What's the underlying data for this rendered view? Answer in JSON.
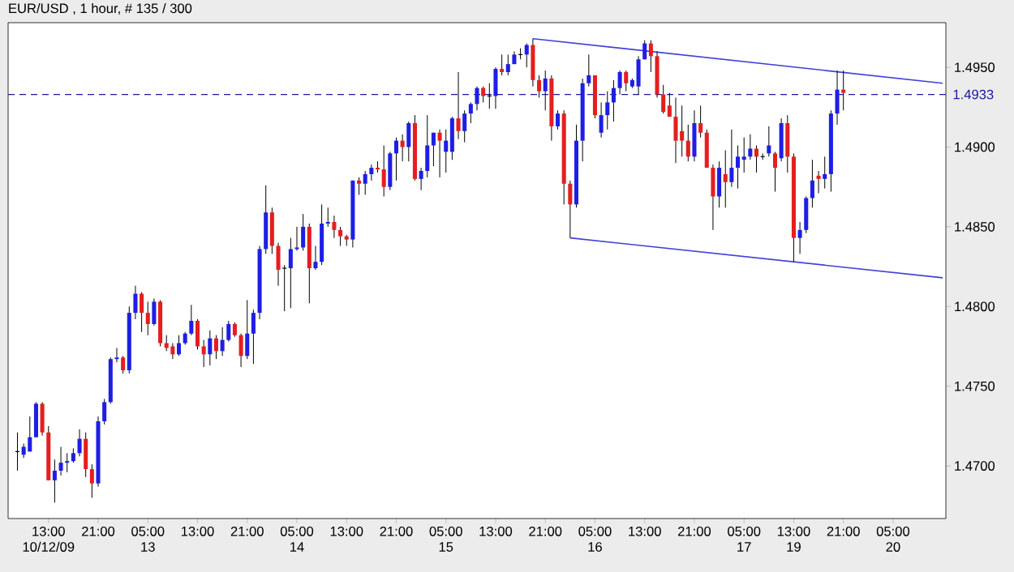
{
  "chart_data": {
    "type": "candlestick",
    "title": "EUR/USD , 1 hour, # 135 / 300",
    "categories": [
      null,
      null,
      null,
      null,
      null,
      "13:00 10/12/09",
      null,
      null,
      null,
      null,
      null,
      null,
      null,
      "21:00",
      null,
      null,
      null,
      null,
      null,
      null,
      null,
      "05:00 13",
      null,
      null,
      null,
      null,
      null,
      null,
      null,
      "13:00",
      null,
      null,
      null,
      null,
      null,
      null,
      null,
      "21:00",
      null,
      null,
      null,
      null,
      null,
      null,
      null,
      "05:00 14",
      null,
      null,
      null,
      null,
      null,
      null,
      null,
      "13:00",
      null,
      null,
      null,
      null,
      null,
      null,
      null,
      "21:00",
      null,
      null,
      null,
      null,
      null,
      null,
      null,
      "05:00 15",
      null,
      null,
      null,
      null,
      null,
      null,
      null,
      "13:00",
      null,
      null,
      null,
      null,
      null,
      null,
      null,
      "21:00",
      null,
      null,
      null,
      null,
      null,
      null,
      null,
      "05:00 16",
      null,
      null,
      null,
      null,
      null,
      null,
      null,
      "13:00",
      null,
      null,
      null,
      null,
      null,
      null,
      null,
      "21:00",
      null,
      null,
      null,
      null,
      null,
      null,
      null,
      "05:00 17",
      null,
      null,
      null,
      null,
      null,
      null,
      null,
      "13:00 19",
      null,
      null,
      null,
      null,
      null,
      null,
      null,
      "21:00",
      null,
      null,
      null,
      null,
      null,
      null,
      null,
      "05:00 20",
      null,
      null,
      null,
      null,
      null,
      null,
      null,
      null
    ],
    "ohlc": [
      [
        1.4709,
        1.4721,
        1.4697,
        1.4709
      ],
      [
        1.4707,
        1.4714,
        1.4705,
        1.4712
      ],
      [
        1.4709,
        1.4731,
        1.4709,
        1.4718
      ],
      [
        1.4718,
        1.474,
        1.4718,
        1.4739
      ],
      [
        1.4739,
        1.474,
        1.4719,
        1.4721
      ],
      [
        1.4721,
        1.4725,
        1.4691,
        1.4691
      ],
      [
        1.4691,
        1.4704,
        1.4677,
        1.4697
      ],
      [
        1.4697,
        1.4712,
        1.4694,
        1.4702
      ],
      [
        1.4702,
        1.4708,
        1.4696,
        1.4703
      ],
      [
        1.4703,
        1.4711,
        1.4702,
        1.4708
      ],
      [
        1.4708,
        1.4723,
        1.4706,
        1.4717
      ],
      [
        1.4717,
        1.4721,
        1.4693,
        1.4698
      ],
      [
        1.4698,
        1.4701,
        1.468,
        1.4689
      ],
      [
        1.4689,
        1.4731,
        1.4687,
        1.4728
      ],
      [
        1.4728,
        1.4742,
        1.4726,
        1.474
      ],
      [
        1.474,
        1.4768,
        1.4739,
        1.4767
      ],
      [
        1.4767,
        1.4774,
        1.4765,
        1.4768
      ],
      [
        1.4768,
        1.4769,
        1.4758,
        1.476
      ],
      [
        1.476,
        1.48,
        1.4758,
        1.4796
      ],
      [
        1.4796,
        1.4813,
        1.4792,
        1.4808
      ],
      [
        1.4808,
        1.4809,
        1.4784,
        1.4796
      ],
      [
        1.4796,
        1.4803,
        1.4782,
        1.4789
      ],
      [
        1.4789,
        1.4805,
        1.4788,
        1.4803
      ],
      [
        1.4803,
        1.4804,
        1.4775,
        1.4777
      ],
      [
        1.4777,
        1.4782,
        1.4772,
        1.4774
      ],
      [
        1.4775,
        1.4777,
        1.4767,
        1.477
      ],
      [
        1.477,
        1.4782,
        1.4769,
        1.4777
      ],
      [
        1.4777,
        1.4784,
        1.4776,
        1.4783
      ],
      [
        1.4783,
        1.4801,
        1.4782,
        1.4791
      ],
      [
        1.4791,
        1.4792,
        1.4773,
        1.4775
      ],
      [
        1.4775,
        1.4779,
        1.4762,
        1.477
      ],
      [
        1.477,
        1.4785,
        1.4763,
        1.478
      ],
      [
        1.478,
        1.4782,
        1.4767,
        1.4772
      ],
      [
        1.4772,
        1.4787,
        1.4769,
        1.4779
      ],
      [
        1.4779,
        1.4791,
        1.4778,
        1.4789
      ],
      [
        1.4789,
        1.479,
        1.4781,
        1.4782
      ],
      [
        1.4782,
        1.4783,
        1.4762,
        1.4769
      ],
      [
        1.4769,
        1.4804,
        1.4767,
        1.4783
      ],
      [
        1.4783,
        1.4798,
        1.4764,
        1.4796
      ],
      [
        1.4796,
        1.4838,
        1.4792,
        1.4836
      ],
      [
        1.4836,
        1.4876,
        1.4833,
        1.4859
      ],
      [
        1.4859,
        1.4862,
        1.4833,
        1.4838
      ],
      [
        1.4838,
        1.484,
        1.4813,
        1.4823
      ],
      [
        1.4824,
        1.4826,
        1.4797,
        1.4824
      ],
      [
        1.4824,
        1.4843,
        1.4799,
        1.4836
      ],
      [
        1.4836,
        1.485,
        1.4835,
        1.4837
      ],
      [
        1.4837,
        1.4858,
        1.4835,
        1.485
      ],
      [
        1.485,
        1.4852,
        1.4802,
        1.4824
      ],
      [
        1.4824,
        1.4838,
        1.4823,
        1.4828
      ],
      [
        1.4828,
        1.4864,
        1.4826,
        1.4852
      ],
      [
        1.4852,
        1.4862,
        1.485,
        1.4853
      ],
      [
        1.4853,
        1.4857,
        1.4843,
        1.4848
      ],
      [
        1.4848,
        1.485,
        1.4838,
        1.4844
      ],
      [
        1.4844,
        1.4845,
        1.4838,
        1.4842
      ],
      [
        1.4842,
        1.4879,
        1.4837,
        1.4879
      ],
      [
        1.4879,
        1.4881,
        1.487,
        1.4877
      ],
      [
        1.4877,
        1.4885,
        1.487,
        1.4883
      ],
      [
        1.4883,
        1.4889,
        1.4879,
        1.4887
      ],
      [
        1.4887,
        1.4891,
        1.4884,
        1.4886
      ],
      [
        1.4886,
        1.4901,
        1.4869,
        1.4875
      ],
      [
        1.4875,
        1.4897,
        1.4873,
        1.4896
      ],
      [
        1.4896,
        1.4906,
        1.4879,
        1.4904
      ],
      [
        1.4904,
        1.4908,
        1.4891,
        1.49
      ],
      [
        1.49,
        1.4916,
        1.4891,
        1.4915
      ],
      [
        1.4915,
        1.492,
        1.4879,
        1.488
      ],
      [
        1.488,
        1.4887,
        1.4873,
        1.4885
      ],
      [
        1.4885,
        1.492,
        1.4881,
        1.4901
      ],
      [
        1.4901,
        1.4909,
        1.4888,
        1.4909
      ],
      [
        1.4909,
        1.4911,
        1.4881,
        1.4904
      ],
      [
        1.4897,
        1.4911,
        1.4884,
        1.4904
      ],
      [
        1.4897,
        1.4919,
        1.4892,
        1.4918
      ],
      [
        1.4918,
        1.4947,
        1.4905,
        1.491
      ],
      [
        1.491,
        1.4923,
        1.4903,
        1.4921
      ],
      [
        1.4921,
        1.4928,
        1.4915,
        1.4927
      ],
      [
        1.4927,
        1.4938,
        1.4923,
        1.4937
      ],
      [
        1.4937,
        1.4938,
        1.4928,
        1.4932
      ],
      [
        1.4932,
        1.494,
        1.4924,
        1.4932
      ],
      [
        1.4932,
        1.495,
        1.4924,
        1.4949
      ],
      [
        1.4949,
        1.4958,
        1.4945,
        1.4947
      ],
      [
        1.4947,
        1.4958,
        1.4945,
        1.4952
      ],
      [
        1.4952,
        1.496,
        1.4952,
        1.4958
      ],
      [
        1.4958,
        1.4962,
        1.4955,
        1.4958
      ],
      [
        1.4958,
        1.4965,
        1.495,
        1.4964
      ],
      [
        1.4964,
        1.4968,
        1.4938,
        1.4942
      ],
      [
        1.4942,
        1.4945,
        1.4931,
        1.4935
      ],
      [
        1.4935,
        1.4948,
        1.4923,
        1.4943
      ],
      [
        1.4943,
        1.4945,
        1.4904,
        1.4913
      ],
      [
        1.4913,
        1.4923,
        1.4911,
        1.4921
      ],
      [
        1.4921,
        1.4923,
        1.4864,
        1.4877
      ],
      [
        1.4877,
        1.4879,
        1.4843,
        1.4864
      ],
      [
        1.4864,
        1.4914,
        1.4862,
        1.4904
      ],
      [
        1.4904,
        1.4943,
        1.4891,
        1.494
      ],
      [
        1.494,
        1.4958,
        1.4938,
        1.4945
      ],
      [
        1.4945,
        1.4945,
        1.4918,
        1.492
      ],
      [
        1.4909,
        1.4928,
        1.4906,
        1.492
      ],
      [
        1.492,
        1.4935,
        1.4911,
        1.4928
      ],
      [
        1.4928,
        1.4942,
        1.4916,
        1.4937
      ],
      [
        1.4937,
        1.4948,
        1.4933,
        1.4947
      ],
      [
        1.4947,
        1.4948,
        1.4935,
        1.494
      ],
      [
        1.4938,
        1.4943,
        1.4937,
        1.4942
      ],
      [
        1.4938,
        1.4957,
        1.4933,
        1.4955
      ],
      [
        1.4955,
        1.4967,
        1.4955,
        1.4965
      ],
      [
        1.4965,
        1.4967,
        1.4947,
        1.4957
      ],
      [
        1.4957,
        1.496,
        1.4931,
        1.4933
      ],
      [
        1.4933,
        1.4939,
        1.4921,
        1.4922
      ],
      [
        1.4926,
        1.4934,
        1.4919,
        1.4919
      ],
      [
        1.4919,
        1.4931,
        1.489,
        1.4904
      ],
      [
        1.491,
        1.4926,
        1.4894,
        1.4904
      ],
      [
        1.4904,
        1.4914,
        1.4891,
        1.4894
      ],
      [
        1.4894,
        1.4923,
        1.4891,
        1.4915
      ],
      [
        1.4915,
        1.4926,
        1.4906,
        1.4909
      ],
      [
        1.4909,
        1.4911,
        1.4887,
        1.4887
      ],
      [
        1.4887,
        1.4889,
        1.4848,
        1.4869
      ],
      [
        1.4869,
        1.4891,
        1.4862,
        1.4887
      ],
      [
        1.4883,
        1.4898,
        1.4862,
        1.4878
      ],
      [
        1.4878,
        1.4911,
        1.4875,
        1.4887
      ],
      [
        1.4887,
        1.4901,
        1.4874,
        1.4894
      ],
      [
        1.4892,
        1.4906,
        1.4884,
        1.4894
      ],
      [
        1.4894,
        1.4908,
        1.4892,
        1.4899
      ],
      [
        1.4899,
        1.4901,
        1.4884,
        1.4894
      ],
      [
        1.4894,
        1.4896,
        1.4892,
        1.4894
      ],
      [
        1.4896,
        1.4913,
        1.4894,
        1.4901
      ],
      [
        1.4896,
        1.4897,
        1.4872,
        1.4887
      ],
      [
        1.4893,
        1.4918,
        1.4891,
        1.4915
      ],
      [
        1.4915,
        1.492,
        1.4884,
        1.4894
      ],
      [
        1.4894,
        1.4896,
        1.4828,
        1.4843
      ],
      [
        1.4843,
        1.4853,
        1.4833,
        1.4848
      ],
      [
        1.4848,
        1.4869,
        1.4846,
        1.4868
      ],
      [
        1.4868,
        1.4892,
        1.4862,
        1.4879
      ],
      [
        1.4882,
        1.4885,
        1.4871,
        1.488
      ],
      [
        1.488,
        1.4894,
        1.4874,
        1.4883
      ],
      [
        1.4883,
        1.4923,
        1.4872,
        1.4921
      ],
      [
        1.4921,
        1.4948,
        1.4914,
        1.4936
      ],
      [
        1.4936,
        1.4948,
        1.4923,
        1.4934
      ],
      null,
      null,
      null,
      null,
      null,
      null,
      null,
      null,
      null,
      null,
      null,
      null,
      null,
      null,
      null,
      null
    ],
    "colors": [
      "#000000",
      "#1e1ee6",
      "#1e1ee6",
      "#1e1ee6",
      "#e61e1e",
      "#e61e1e",
      "#1e1ee6",
      "#1e1ee6",
      "#1e1ee6",
      "#1e1ee6",
      "#1e1ee6",
      "#e61e1e",
      "#e61e1e",
      "#1e1ee6",
      "#1e1ee6",
      "#1e1ee6",
      "#1e1ee6",
      "#e61e1e",
      "#1e1ee6",
      "#1e1ee6",
      "#e61e1e",
      "#e61e1e",
      "#1e1ee6",
      "#e61e1e",
      "#e61e1e",
      "#e61e1e",
      "#1e1ee6",
      "#1e1ee6",
      "#1e1ee6",
      "#e61e1e",
      "#e61e1e",
      "#1e1ee6",
      "#e61e1e",
      "#1e1ee6",
      "#1e1ee6",
      "#e61e1e",
      "#e61e1e",
      "#1e1ee6",
      "#1e1ee6",
      "#1e1ee6",
      "#1e1ee6",
      "#e61e1e",
      "#e61e1e",
      "#000000",
      "#1e1ee6",
      "#1e1ee6",
      "#1e1ee6",
      "#e61e1e",
      "#1e1ee6",
      "#1e1ee6",
      "#1e1ee6",
      "#e61e1e",
      "#e61e1e",
      "#e61e1e",
      "#1e1ee6",
      "#e61e1e",
      "#1e1ee6",
      "#1e1ee6",
      "#e61e1e",
      "#e61e1e",
      "#1e1ee6",
      "#1e1ee6",
      "#e61e1e",
      "#1e1ee6",
      "#e61e1e",
      "#1e1ee6",
      "#1e1ee6",
      "#1e1ee6",
      "#e61e1e",
      "#1e1ee6",
      "#1e1ee6",
      "#e61e1e",
      "#1e1ee6",
      "#1e1ee6",
      "#1e1ee6",
      "#e61e1e",
      "#000000",
      "#1e1ee6",
      "#e61e1e",
      "#1e1ee6",
      "#1e1ee6",
      "#000000",
      "#1e1ee6",
      "#e61e1e",
      "#e61e1e",
      "#1e1ee6",
      "#e61e1e",
      "#1e1ee6",
      "#e61e1e",
      "#e61e1e",
      "#1e1ee6",
      "#1e1ee6",
      "#1e1ee6",
      "#e61e1e",
      "#1e1ee6",
      "#1e1ee6",
      "#1e1ee6",
      "#1e1ee6",
      "#e61e1e",
      "#1e1ee6",
      "#1e1ee6",
      "#1e1ee6",
      "#e61e1e",
      "#e61e1e",
      "#e61e1e",
      "#e61e1e",
      "#e61e1e",
      "#e61e1e",
      "#e61e1e",
      "#1e1ee6",
      "#e61e1e",
      "#e61e1e",
      "#e61e1e",
      "#1e1ee6",
      "#e61e1e",
      "#1e1ee6",
      "#1e1ee6",
      "#1e1ee6",
      "#1e1ee6",
      "#e61e1e",
      "#000000",
      "#1e1ee6",
      "#e61e1e",
      "#1e1ee6",
      "#e61e1e",
      "#e61e1e",
      "#1e1ee6",
      "#1e1ee6",
      "#1e1ee6",
      "#e61e1e",
      "#1e1ee6",
      "#1e1ee6",
      "#1e1ee6",
      "#e61e1e",
      null,
      null,
      null,
      null,
      null,
      null,
      null,
      null,
      null,
      null,
      null,
      null,
      null,
      null,
      null,
      null
    ],
    "series": [
      {
        "type": "line",
        "color": "#4040d8",
        "values": [
          null,
          null,
          null,
          null,
          null,
          null,
          null,
          null,
          null,
          null,
          null,
          null,
          null,
          null,
          null,
          null,
          null,
          null,
          null,
          null,
          null,
          null,
          null,
          null,
          null,
          null,
          null,
          null,
          null,
          null,
          null,
          null,
          null,
          null,
          null,
          null,
          null,
          null,
          null,
          null,
          null,
          null,
          null,
          null,
          null,
          null,
          null,
          null,
          null,
          null,
          null,
          null,
          null,
          null,
          null,
          null,
          null,
          null,
          null,
          null,
          null,
          null,
          null,
          null,
          null,
          null,
          null,
          null,
          null,
          null,
          null,
          null,
          null,
          null,
          null,
          null,
          null,
          null,
          null,
          null,
          null,
          null,
          null,
          1.4968,
          null,
          null,
          null,
          null,
          null,
          null,
          null,
          null,
          null,
          null,
          null,
          null,
          null,
          null,
          null,
          null,
          null,
          null,
          null,
          null,
          null,
          null,
          null,
          null,
          null,
          null,
          null,
          null,
          null,
          null,
          null,
          null,
          null,
          null,
          null,
          null,
          null,
          null,
          null,
          null,
          null,
          null,
          null,
          null,
          null,
          null,
          null,
          null,
          null,
          null,
          null,
          null,
          null,
          null,
          null,
          null,
          null,
          null,
          null,
          null,
          null,
          null,
          null,
          null,
          null,
          1.494
        ]
      },
      {
        "type": "line",
        "color": "#4040d8",
        "values": [
          null,
          null,
          null,
          null,
          null,
          null,
          null,
          null,
          null,
          null,
          null,
          null,
          null,
          null,
          null,
          null,
          null,
          null,
          null,
          null,
          null,
          null,
          null,
          null,
          null,
          null,
          null,
          null,
          null,
          null,
          null,
          null,
          null,
          null,
          null,
          null,
          null,
          null,
          null,
          null,
          null,
          null,
          null,
          null,
          null,
          null,
          null,
          null,
          null,
          null,
          null,
          null,
          null,
          null,
          null,
          null,
          null,
          null,
          null,
          null,
          null,
          null,
          null,
          null,
          null,
          null,
          null,
          null,
          null,
          null,
          null,
          null,
          null,
          null,
          null,
          null,
          null,
          null,
          null,
          null,
          null,
          null,
          null,
          null,
          null,
          null,
          null,
          null,
          null,
          1.4843,
          null,
          null,
          null,
          null,
          null,
          null,
          null,
          null,
          null,
          null,
          null,
          null,
          null,
          null,
          null,
          null,
          null,
          null,
          null,
          null,
          null,
          null,
          null,
          null,
          null,
          null,
          null,
          null,
          null,
          null,
          null,
          null,
          null,
          null,
          null,
          null,
          null,
          null,
          null,
          null,
          null,
          null,
          null,
          null,
          null,
          null,
          null,
          null,
          null,
          null,
          null,
          null,
          null,
          null,
          null,
          null,
          null,
          null,
          null,
          1.4818
        ]
      }
    ],
    "ylim": [
      1.4667,
      1.4978
    ],
    "yticks": [
      {
        "value": 1.47,
        "label": "1.4700"
      },
      {
        "value": 1.475,
        "label": "1.4750"
      },
      {
        "value": 1.48,
        "label": "1.4800"
      },
      {
        "value": 1.485,
        "label": "1.4850"
      },
      {
        "value": 1.49,
        "label": "1.4900"
      },
      {
        "value": 1.495,
        "label": "1.4950"
      }
    ],
    "ref_lines": [
      {
        "axis": "y",
        "value": 1.4933,
        "label": "1.4933",
        "color": "#1a1a9c",
        "line_style": "dashed"
      }
    ]
  }
}
